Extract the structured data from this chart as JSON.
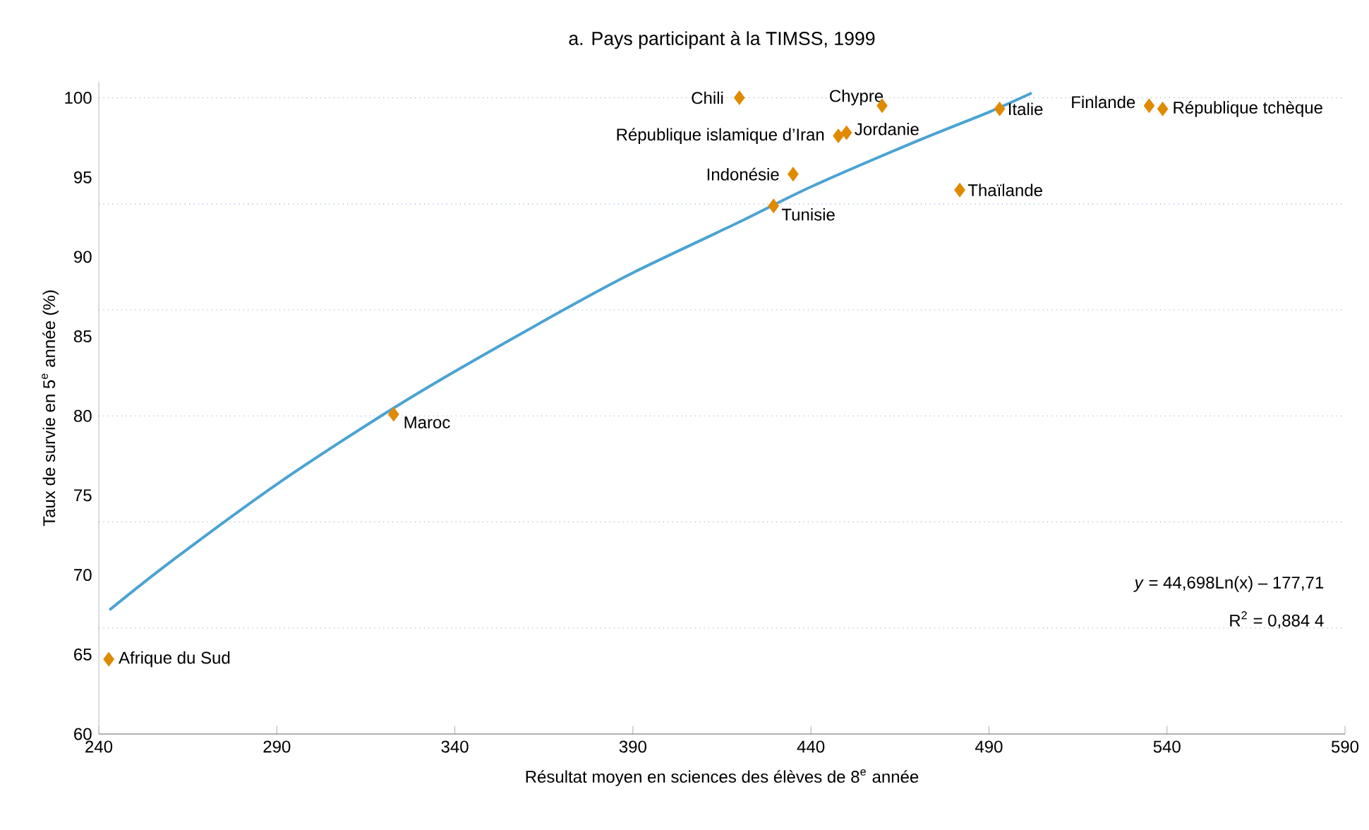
{
  "chart_data": {
    "type": "scatter",
    "title": "a. Pays participant à la TIMSS, 1999",
    "xlabel": "Résultat moyen en sciences des élèves de 8$^{e}$ année",
    "ylabel": "Taux de survie en 5$^{e}$ année (%)",
    "xlim": [
      240,
      590
    ],
    "xticks": [
      240,
      290,
      340,
      390,
      440,
      490,
      540,
      590
    ],
    "ylim": [
      60,
      101
    ],
    "yticks": [
      60,
      65,
      70,
      75,
      80,
      85,
      90,
      95,
      100
    ],
    "marker": "diamond",
    "series": [
      {
        "color": "#e08a00",
        "x": [
          242.8,
          322.8,
          419.9,
          460,
          447.7,
          450,
          435,
          429.5,
          481.8,
          493,
          535,
          538.8
        ],
        "values": [
          64.7,
          80.1,
          100,
          99.5,
          97.6,
          97.8,
          95.2,
          93.2,
          94.2,
          99.3,
          99.5,
          99.3
        ]
      },
      {
        "type": "line",
        "marker": "none",
        "color": "#4aa3d3",
        "x": [
          243,
          260,
          290,
          320,
          340,
          370,
          390,
          420,
          440,
          470,
          490,
          502
        ],
        "values": [
          67.8,
          70.8,
          75.7,
          80.1,
          82.8,
          86.6,
          89.0,
          92.2,
          94.4,
          97.3,
          99.1,
          100.3
        ]
      }
    ],
    "ref_lines": [
      {
        "axis": "y",
        "value": 100,
        "color": "#7fa7c9",
        "line_style": "dotted"
      },
      {
        "axis": "y",
        "value": 93.33,
        "color": "#7fa7c9",
        "line_style": "dotted"
      },
      {
        "axis": "y",
        "value": 86.67,
        "color": "#7fa7c9",
        "line_style": "dotted"
      },
      {
        "axis": "y",
        "value": 80,
        "color": "#7fa7c9",
        "line_style": "dotted"
      },
      {
        "axis": "y",
        "value": 73.33,
        "color": "#7fa7c9",
        "line_style": "dotted"
      },
      {
        "axis": "y",
        "value": 66.67,
        "color": "#7fa7c9",
        "line_style": "dotted"
      }
    ],
    "annotations": [
      {
        "text": "Afrique du Sud",
        "x": 242.8,
        "y": 64.7
      },
      {
        "text": "Maroc",
        "x": 322.8,
        "y": 80.1
      },
      {
        "text": "Chili",
        "x": 419.9,
        "y": 100
      },
      {
        "text": "Chypre",
        "x": 460,
        "y": 99.5
      },
      {
        "text": "République islamique d’Iran",
        "x": 447.7,
        "y": 97.6
      },
      {
        "text": "Jordanie",
        "x": 450,
        "y": 97.8
      },
      {
        "text": "Indonésie",
        "x": 435,
        "y": 95.2
      },
      {
        "text": "Tunisie",
        "x": 429.5,
        "y": 93.2
      },
      {
        "text": "Thaïlande",
        "x": 481.8,
        "y": 94.2
      },
      {
        "text": "Italie",
        "x": 493,
        "y": 99.3
      },
      {
        "text": "Finlande",
        "x": 535,
        "y": 99.5
      },
      {
        "text": "République tchèque",
        "x": 538.8,
        "y": 99.3
      },
      "*y* = 44,698Ln(x) – 177,71",
      "R$^{2}$ = 0,884 4"
    ]
  }
}
